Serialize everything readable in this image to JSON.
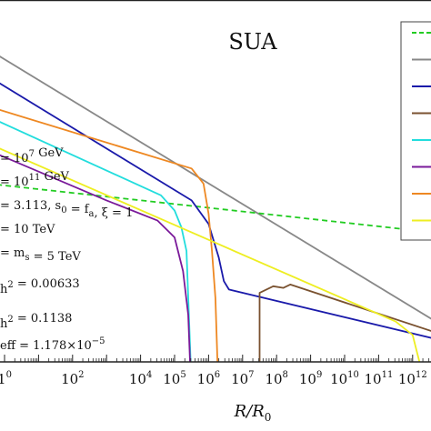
{
  "chart_data": {
    "type": "line",
    "title": "SUA",
    "xlabel": "R/R0",
    "x_scale": "log",
    "x_tick_labels": [
      {
        "base": "1",
        "exp": "0",
        "pos": 0
      },
      {
        "base": "10",
        "exp": "2",
        "pos": 2
      },
      {
        "base": "10",
        "exp": "4",
        "pos": 4
      },
      {
        "base": "10",
        "exp": "5",
        "pos": 5
      },
      {
        "base": "10",
        "exp": "6",
        "pos": 6
      },
      {
        "base": "10",
        "exp": "7",
        "pos": 7
      },
      {
        "base": "10",
        "exp": "8",
        "pos": 8
      },
      {
        "base": "10",
        "exp": "9",
        "pos": 9
      },
      {
        "base": "10",
        "exp": "10",
        "pos": 10
      },
      {
        "base": "10",
        "exp": "11",
        "pos": 11
      },
      {
        "base": "10",
        "exp": "12",
        "pos": 12
      }
    ],
    "annotations": [
      {
        "pre": "= 10",
        "sup": "7",
        "post": " GeV"
      },
      {
        "pre": "= 10",
        "sup": "11",
        "post": " GeV"
      },
      {
        "pre": "= 3.113,  s",
        "sub": "0",
        "mid": " = f",
        "sub2": "a",
        "post": ",  ξ = 1"
      },
      {
        "pre": "= 10 TeV"
      },
      {
        "pre": "=  m",
        "sub": "s",
        "post": " = 5 TeV"
      },
      {
        "pre": "h",
        "sup": "2",
        "post": " = 0.00633"
      },
      {
        "pre": "h",
        "sup": "2",
        "post": " = 0.1138"
      },
      {
        "pre": "eff",
        "mid": " = 1.178×10",
        "sup": "−5"
      }
    ],
    "legend": {
      "placement": "right",
      "colors": [
        "#22cc22",
        "#888888",
        "#1a1aaa",
        "#7a5230",
        "#22dddd",
        "#7a1a9a",
        "#ee8822",
        "#eeee22"
      ]
    },
    "series": [
      {
        "color": "#888888",
        "dashed": false,
        "x": [
          -0.5,
          12.6
        ],
        "y": [
          9.3,
          1.25
        ]
      },
      {
        "color": "#22cc22",
        "dashed": true,
        "x": [
          -0.5,
          12.6
        ],
        "y": [
          5.3,
          3.85
        ]
      },
      {
        "color": "#1a1aaa",
        "dashed": false,
        "x": [
          -0.5,
          5.5,
          6.0,
          6.3,
          6.45,
          6.6,
          12.6
        ],
        "y": [
          8.5,
          4.8,
          4.1,
          3.1,
          2.4,
          2.15,
          0.7
        ]
      },
      {
        "color": "#ee8822",
        "dashed": false,
        "x": [
          -0.5,
          5.5,
          5.85,
          6.0,
          6.1,
          6.2,
          6.3
        ],
        "y": [
          7.6,
          5.75,
          5.3,
          4.4,
          3.3,
          1.9,
          -1.2
        ]
      },
      {
        "color": "#22dddd",
        "dashed": false,
        "x": [
          -0.5,
          4.6,
          5.0,
          5.2,
          5.35,
          5.5
        ],
        "y": [
          7.3,
          4.95,
          4.5,
          4.0,
          3.3,
          -0.75
        ]
      },
      {
        "color": "#7a1a9a",
        "dashed": false,
        "x": [
          -0.5,
          3.0,
          4.5,
          5.0,
          5.25,
          5.4,
          5.5
        ],
        "y": [
          6.3,
          4.8,
          4.2,
          3.7,
          2.7,
          1.4,
          -1.2
        ]
      },
      {
        "color": "#7a5230",
        "dashed": false,
        "x": [
          7.5,
          7.5,
          7.9,
          8.2,
          8.4,
          12.6
        ],
        "y": [
          -1.2,
          2.05,
          2.25,
          2.2,
          2.3,
          0.9
        ]
      },
      {
        "color": "#eeee22",
        "dashed": false,
        "x": [
          -0.5,
          11.5,
          12.0,
          12.2,
          12.35,
          12.5
        ],
        "y": [
          6.5,
          1.2,
          0.8,
          0.0,
          -0.8,
          -1.2
        ]
      }
    ]
  }
}
